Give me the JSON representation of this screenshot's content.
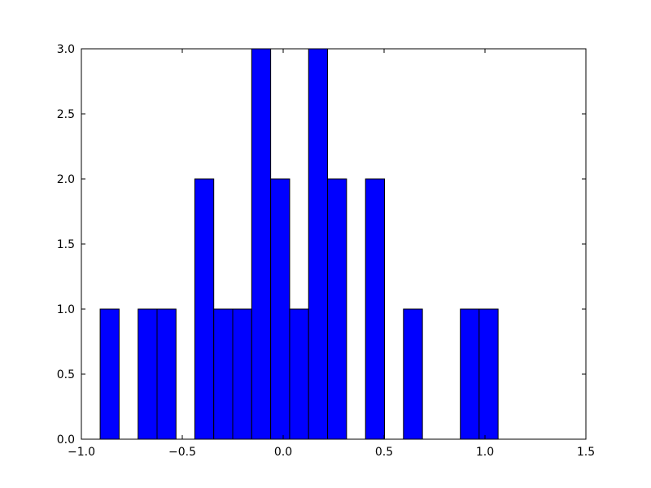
{
  "chart_data": {
    "type": "histogram",
    "bins": [
      -0.907,
      -0.813,
      -0.719,
      -0.625,
      -0.531,
      -0.438,
      -0.344,
      -0.25,
      -0.156,
      -0.062,
      0.032,
      0.126,
      0.22,
      0.314,
      0.408,
      0.502,
      0.596,
      0.69,
      0.784,
      0.878,
      0.971,
      1.065
    ],
    "values": [
      1,
      0,
      1,
      1,
      0,
      2,
      1,
      1,
      3,
      2,
      1,
      3,
      2,
      0,
      2,
      0,
      1,
      0,
      0,
      1,
      1
    ],
    "color": "#0000ff",
    "xlim": [
      -1.0,
      1.5
    ],
    "xticks": [
      {
        "value": -1.0,
        "label": "−1.0"
      },
      {
        "value": -0.5,
        "label": "−0.5"
      },
      {
        "value": 0.0,
        "label": "0.0"
      },
      {
        "value": 0.5,
        "label": "0.5"
      },
      {
        "value": 1.0,
        "label": "1.0"
      },
      {
        "value": 1.5,
        "label": "1.5"
      }
    ],
    "ylim": [
      0.0,
      3.0
    ],
    "yticks": [
      {
        "value": 0.0,
        "label": "0.0"
      },
      {
        "value": 0.5,
        "label": "0.5"
      },
      {
        "value": 1.0,
        "label": "1.0"
      },
      {
        "value": 1.5,
        "label": "1.5"
      },
      {
        "value": 2.0,
        "label": "2.0"
      },
      {
        "value": 2.5,
        "label": "2.5"
      },
      {
        "value": 3.0,
        "label": "3.0"
      }
    ],
    "grid": false
  }
}
